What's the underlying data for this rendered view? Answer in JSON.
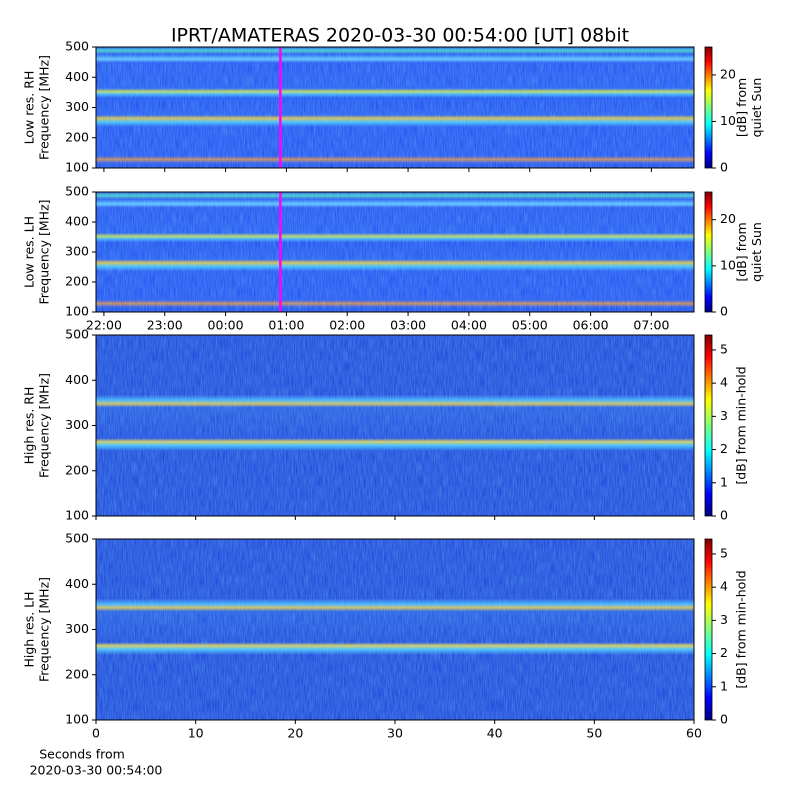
{
  "chart_data": [
    {
      "type": "heatmap",
      "title": "IPRT/AMATERAS 2020-03-30 00:54:00 [UT]   08bit",
      "ylabel": [
        "Low res. RH",
        "Frequency [MHz]"
      ],
      "xlim": [
        21.87,
        31.7
      ],
      "xticks": [
        {
          "value": 22,
          "label": "22:00"
        },
        {
          "value": 23,
          "label": "23:00"
        },
        {
          "value": 24,
          "label": "00:00"
        },
        {
          "value": 25,
          "label": "01:00"
        },
        {
          "value": 26,
          "label": "02:00"
        },
        {
          "value": 27,
          "label": "03:00"
        },
        {
          "value": 28,
          "label": "04:00"
        },
        {
          "value": 29,
          "label": "05:00"
        },
        {
          "value": 30,
          "label": "06:00"
        },
        {
          "value": 31,
          "label": "07:00"
        }
      ],
      "show_xticklabels": false,
      "ylim": [
        100,
        500
      ],
      "yticks": [
        100,
        200,
        300,
        400,
        500
      ],
      "marker_x": 24.9,
      "marker_color": "#ff00ff",
      "colorbar_label": [
        "[dB] from",
        "quiet Sun"
      ],
      "clim": [
        0,
        26
      ],
      "cticks": [
        0,
        10,
        20
      ]
    },
    {
      "type": "heatmap",
      "ylabel": [
        "Low res. LH",
        "Frequency [MHz]"
      ],
      "xlim": [
        21.87,
        31.7
      ],
      "xticks": [
        {
          "value": 22,
          "label": "22:00"
        },
        {
          "value": 23,
          "label": "23:00"
        },
        {
          "value": 24,
          "label": "00:00"
        },
        {
          "value": 25,
          "label": "01:00"
        },
        {
          "value": 26,
          "label": "02:00"
        },
        {
          "value": 27,
          "label": "03:00"
        },
        {
          "value": 28,
          "label": "04:00"
        },
        {
          "value": 29,
          "label": "05:00"
        },
        {
          "value": 30,
          "label": "06:00"
        },
        {
          "value": 31,
          "label": "07:00"
        }
      ],
      "show_xticklabels": true,
      "ylim": [
        100,
        500
      ],
      "yticks": [
        100,
        200,
        300,
        400,
        500
      ],
      "marker_x": 24.9,
      "marker_color": "#ff00ff",
      "colorbar_label": [
        "[dB] from",
        "quiet Sun"
      ],
      "clim": [
        0,
        26
      ],
      "cticks": [
        0,
        10,
        20
      ]
    },
    {
      "type": "heatmap",
      "ylabel": [
        "High res. RH",
        "Frequency [MHz]"
      ],
      "xlim": [
        0,
        60
      ],
      "xticks": [
        0,
        10,
        20,
        30,
        40,
        50,
        60
      ],
      "show_xticklabels": false,
      "ylim": [
        100,
        500
      ],
      "yticks": [
        100,
        200,
        300,
        400,
        500
      ],
      "colorbar_label": [
        "[dB] from min-hold"
      ],
      "clim": [
        0,
        5.45
      ],
      "cticks": [
        0,
        1,
        2,
        3,
        4,
        5
      ]
    },
    {
      "type": "heatmap",
      "ylabel": [
        "High res. LH",
        "Frequency [MHz]"
      ],
      "xlabel": [
        "Seconds from",
        "2020-03-30 00:54:00"
      ],
      "xlim": [
        0,
        60
      ],
      "xticks": [
        0,
        10,
        20,
        30,
        40,
        50,
        60
      ],
      "show_xticklabels": true,
      "ylim": [
        100,
        500
      ],
      "yticks": [
        100,
        200,
        300,
        400,
        500
      ],
      "colorbar_label": [
        "[dB] from min-hold"
      ],
      "clim": [
        0,
        5.45
      ],
      "cticks": [
        0,
        1,
        2,
        3,
        4,
        5
      ]
    }
  ]
}
